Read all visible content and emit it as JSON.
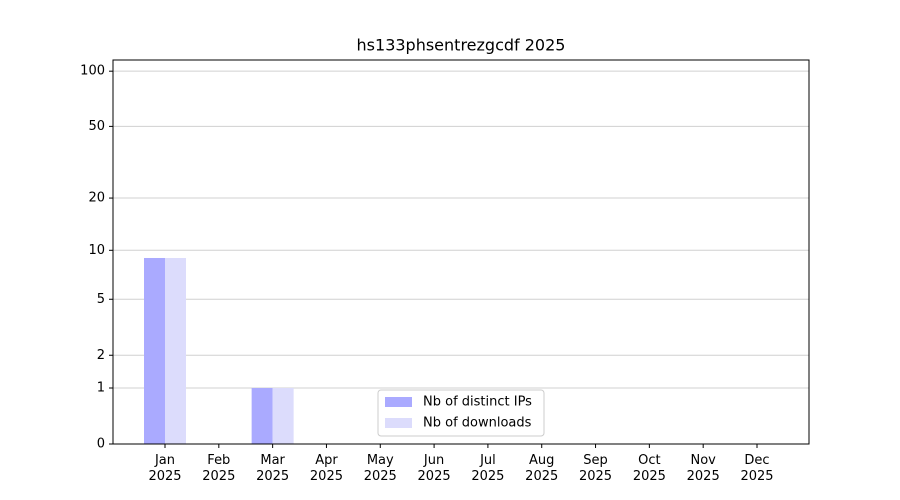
{
  "chart_data": {
    "type": "bar",
    "title": "hs133phsentrezgcdf 2025",
    "scale": "log1p",
    "categories": [
      "Jan 2025",
      "Feb 2025",
      "Mar 2025",
      "Apr 2025",
      "May 2025",
      "Jun 2025",
      "Jul 2025",
      "Aug 2025",
      "Sep 2025",
      "Oct 2025",
      "Nov 2025",
      "Dec 2025"
    ],
    "series": [
      {
        "name": "Nb of distinct IPs",
        "color": "#aaaaff",
        "values": [
          9,
          0,
          1,
          0,
          0,
          0,
          0,
          0,
          0,
          0,
          0,
          0
        ]
      },
      {
        "name": "Nb of downloads",
        "color": "#dcdcfc",
        "values": [
          9,
          0,
          1,
          0,
          0,
          0,
          0,
          0,
          0,
          0,
          0,
          0
        ]
      }
    ],
    "ylim": [
      0,
      115
    ],
    "yticks": [
      0,
      1,
      2,
      5,
      10,
      20,
      50,
      100
    ],
    "grid": true,
    "legend": "lower center"
  }
}
